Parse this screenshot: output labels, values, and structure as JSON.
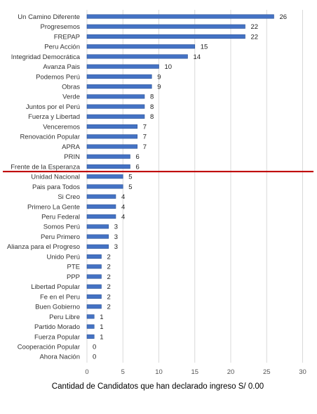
{
  "chart_data": {
    "type": "bar",
    "orientation": "horizontal",
    "categories": [
      "Un Camino Diferente",
      "Progresemos",
      "FREPAP",
      "Peru Acción",
      "Integridad Democrática",
      "Avanza Pais",
      "Podemos Perú",
      "Obras",
      "Verde",
      "Juntos por el Perú",
      "Fuerza y Libertad",
      "Venceremos",
      "Renovación Popular",
      "APRA",
      "PRIN",
      "Frente de la Esperanza",
      "Unidad Nacional",
      "Pais para Todos",
      "Si Creo",
      "Primero La Gente",
      "Peru Federal",
      "Somos Perú",
      "Peru Primero",
      "Alianza para el Progreso",
      "Unido Perú",
      "PTE",
      "PPP",
      "Libertad Popular",
      "Fe en el Peru",
      "Buen Gobierno",
      "Peru Libre",
      "Partido Morado",
      "Fuerza Popular",
      "Cooperación Popular",
      "Ahora Nación"
    ],
    "values": [
      26,
      22,
      22,
      15,
      14,
      10,
      9,
      9,
      8,
      8,
      8,
      7,
      7,
      7,
      6,
      6,
      5,
      5,
      4,
      4,
      4,
      3,
      3,
      3,
      2,
      2,
      2,
      2,
      2,
      2,
      1,
      1,
      1,
      0,
      0
    ],
    "value_labels": [
      "26",
      "22",
      "22",
      "15",
      "14",
      "10",
      "9",
      "9",
      "8",
      "8",
      "8",
      "7",
      "7",
      "7",
      "6",
      "6",
      "5",
      "5",
      "4",
      "4",
      "4",
      "3",
      "3",
      "3",
      "2",
      "2",
      "2",
      "2",
      "2",
      "2",
      "1",
      "1",
      "1",
      "0",
      "0"
    ],
    "x_ticks": [
      "0",
      "5",
      "10",
      "15",
      "20",
      "25",
      "30"
    ],
    "xlabel": "Cantidad de Candidatos que han declarado ingreso S/ 0.00",
    "ylabel": "",
    "title": "",
    "xlim": [
      0,
      30
    ],
    "grid": "vertical",
    "legend": "none",
    "separator_after_category": "Frente de la Esperanza",
    "colors": {
      "bar_fill": "#4472c4",
      "bar_stroke": "#2f5597",
      "gridline": "#d9d9d9",
      "separator": "#c00000"
    }
  }
}
